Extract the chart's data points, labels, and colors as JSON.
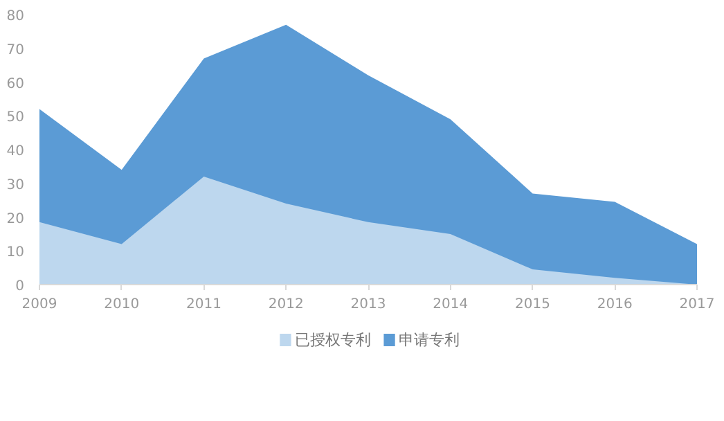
{
  "chart_data": {
    "type": "area",
    "categories": [
      "2009",
      "2010",
      "2011",
      "2012",
      "2013",
      "2014",
      "2015",
      "2016",
      "2017"
    ],
    "series": [
      {
        "name": "已授权专利",
        "color": "#bdd7ee",
        "values": [
          18.5,
          12,
          32,
          24,
          18.5,
          15,
          4.5,
          2,
          0
        ]
      },
      {
        "name": "申请专利",
        "color": "#5b9bd5",
        "values": [
          52,
          34,
          67,
          77,
          62,
          49,
          27,
          24.5,
          12
        ]
      }
    ],
    "ylim": [
      0,
      80
    ],
    "yticks": [
      0,
      10,
      20,
      30,
      40,
      50,
      60,
      70,
      80
    ],
    "grid": false,
    "legend": "bottom"
  }
}
